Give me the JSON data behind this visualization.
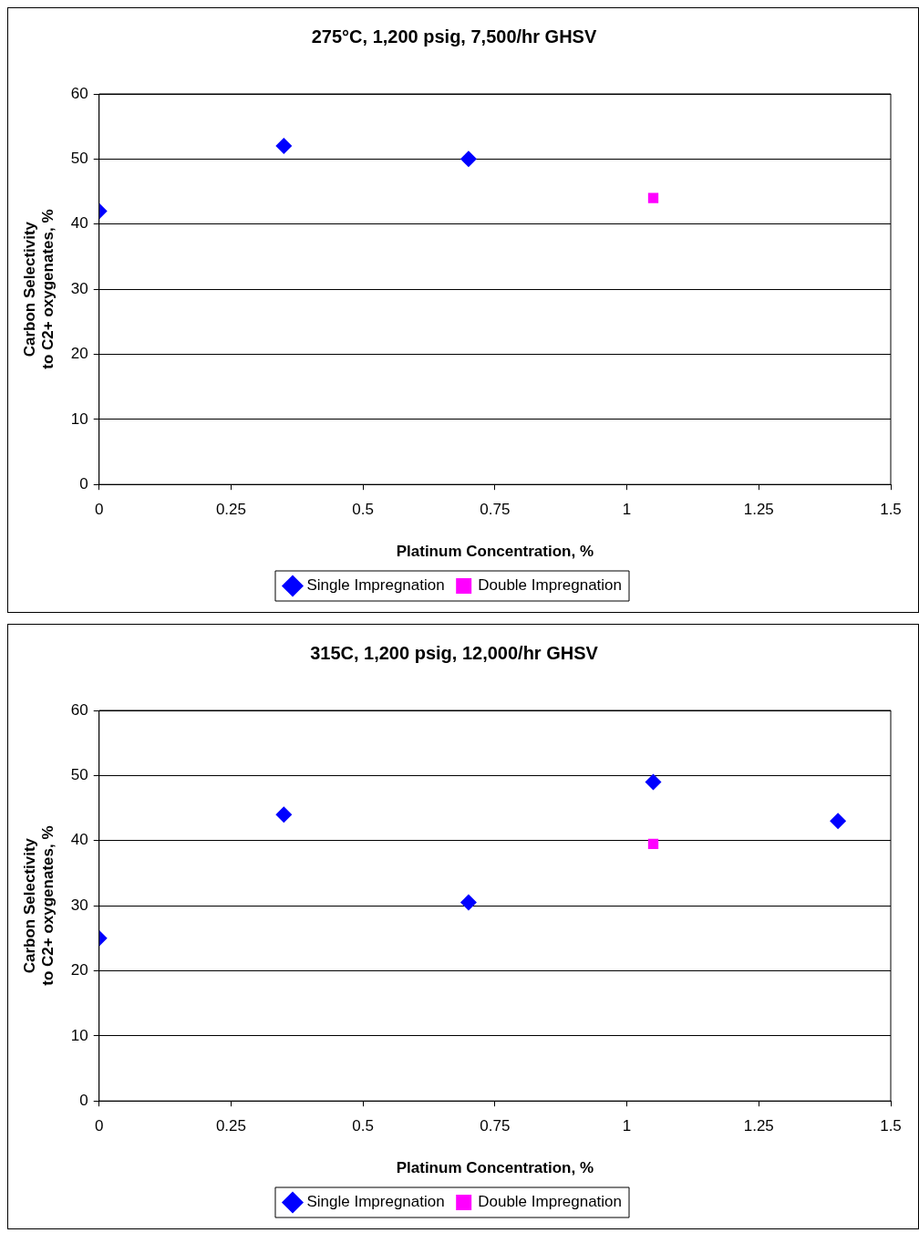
{
  "chart_data": [
    {
      "type": "scatter",
      "title": "275°C, 1,200 psig, 7,500/hr GHSV",
      "xlabel": "Platinum Concentration, %",
      "ylabel": "Carbon Selectivity\nto C2+ oxygenates, %",
      "xlim": [
        0,
        1.5
      ],
      "xticks": [
        0,
        0.25,
        0.5,
        0.75,
        1,
        1.25,
        1.5
      ],
      "ylim": [
        0,
        60
      ],
      "yticks": [
        0,
        10,
        20,
        30,
        40,
        50,
        60
      ],
      "grid": "y",
      "legend": "bottom",
      "series": [
        {
          "name": "Single Impregnation",
          "color": "#0000ff",
          "marker": "diamond",
          "x": [
            0,
            0.35,
            0.7
          ],
          "values": [
            42,
            52,
            50
          ]
        },
        {
          "name": "Double Impregnation",
          "color": "#ff00ff",
          "marker": "square",
          "x": [
            1.05
          ],
          "values": [
            44
          ]
        }
      ]
    },
    {
      "type": "scatter",
      "title": "315C, 1,200 psig, 12,000/hr GHSV",
      "xlabel": "Platinum Concentration, %",
      "ylabel": "Carbon Selectivity\nto C2+ oxygenates, %",
      "xlim": [
        0,
        1.5
      ],
      "xticks": [
        0,
        0.25,
        0.5,
        0.75,
        1,
        1.25,
        1.5
      ],
      "ylim": [
        0,
        60
      ],
      "yticks": [
        0,
        10,
        20,
        30,
        40,
        50,
        60
      ],
      "grid": "y",
      "legend": "bottom",
      "series": [
        {
          "name": "Single Impregnation",
          "color": "#0000ff",
          "marker": "diamond",
          "x": [
            0,
            0.35,
            0.7,
            1.05,
            1.4
          ],
          "values": [
            25,
            44,
            30.5,
            49,
            43
          ]
        },
        {
          "name": "Double Impregnation",
          "color": "#ff00ff",
          "marker": "square",
          "x": [
            1.05
          ],
          "values": [
            39.5
          ]
        }
      ]
    }
  ]
}
